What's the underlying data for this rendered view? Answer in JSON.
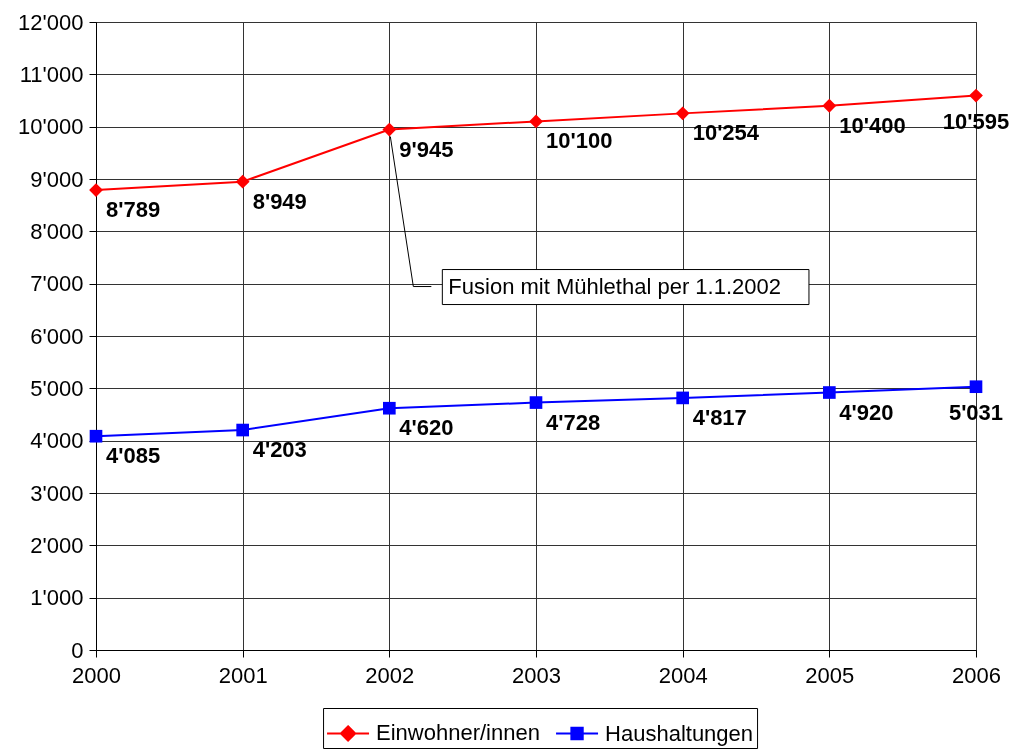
{
  "chart_data": {
    "type": "line",
    "categories": [
      "2000",
      "2001",
      "2002",
      "2003",
      "2004",
      "2005",
      "2006"
    ],
    "series": [
      {
        "name": "Einwohner/innen",
        "color": "#ff0000",
        "marker": "diamond",
        "values": [
          8789,
          8949,
          9945,
          10100,
          10254,
          10400,
          10595
        ],
        "value_labels": [
          "8'789",
          "8'949",
          "9'945",
          "10'100",
          "10'254",
          "10'400",
          "10'595"
        ]
      },
      {
        "name": "Haushaltungen",
        "color": "#0000ff",
        "marker": "square",
        "values": [
          4085,
          4203,
          4620,
          4728,
          4817,
          4920,
          5031
        ],
        "value_labels": [
          "4'085",
          "4'203",
          "4'620",
          "4'728",
          "4'817",
          "4'920",
          "5'031"
        ]
      }
    ],
    "ylim": [
      0,
      12000
    ],
    "yticks": [
      0,
      {
        "value": 1000,
        "label": "1'000"
      },
      {
        "value": 2000,
        "label": "2'000"
      },
      {
        "value": 3000,
        "label": "3'000"
      },
      {
        "value": 4000,
        "label": "4'000"
      },
      {
        "value": 5000,
        "label": "5'000"
      },
      {
        "value": 6000,
        "label": "6'000"
      },
      {
        "value": 7000,
        "label": "7'000"
      },
      {
        "value": 8000,
        "label": "8'000"
      },
      {
        "value": 9000,
        "label": "9'000"
      },
      {
        "value": 10000,
        "label": "10'000"
      },
      {
        "value": 11000,
        "label": "11'000"
      },
      {
        "value": 12000,
        "label": "12'000"
      }
    ],
    "grid": true,
    "legend": "bottom",
    "annotations": [
      {
        "text": "Fusion mit Mühlethal per 1.1.2002",
        "x": "2002",
        "y": 9945
      }
    ]
  }
}
